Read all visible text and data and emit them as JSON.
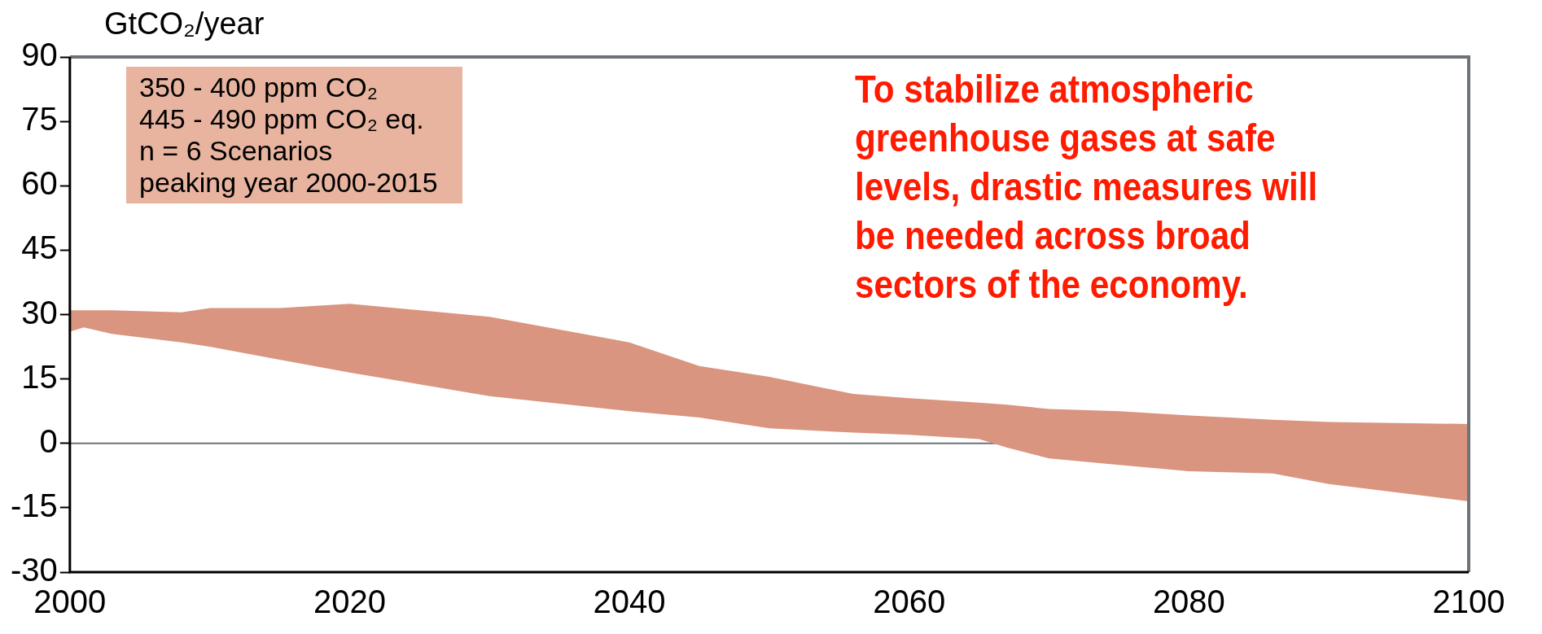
{
  "chart_data": {
    "type": "area",
    "ylabel": "GtCO₂/year",
    "x": [
      2000,
      2001,
      2003,
      2008,
      2010,
      2015,
      2020,
      2030,
      2040,
      2045,
      2050,
      2056,
      2060,
      2065,
      2067,
      2070,
      2075,
      2080,
      2086,
      2090,
      2100,
      2100,
      2090,
      2086,
      2080,
      2075,
      2070,
      2067,
      2065,
      2060,
      2056,
      2050,
      2045,
      2040,
      2030,
      2020,
      2015,
      2010,
      2008,
      2003,
      2001,
      2000
    ],
    "series": [
      {
        "color": "#d9957f",
        "values": [
          31,
          31,
          31,
          30.5,
          31.5,
          31.5,
          32.5,
          29.5,
          23.5,
          18,
          15.5,
          11.5,
          10.5,
          9.5,
          9,
          8,
          7.5,
          6.5,
          5.5,
          5,
          4.5,
          -13.5,
          -9.5,
          -7,
          -6.5,
          -5,
          -3.5,
          -1,
          1,
          2,
          2.5,
          3.5,
          6,
          7.5,
          11,
          16.5,
          19.5,
          22.5,
          23.5,
          25.5,
          27,
          26
        ]
      }
    ],
    "xlim": [
      2000,
      2100
    ],
    "xticks": [
      2000,
      2020,
      2040,
      2060,
      2080,
      2100
    ],
    "ylim": [
      -30,
      90
    ],
    "yticks": [
      -30,
      -15,
      0,
      15,
      30,
      45,
      60,
      75,
      90
    ],
    "ref_lines": [
      {
        "axis": "y",
        "value": 0,
        "color": "#6d7378"
      }
    ],
    "annotations": [
      "350 - 400 ppm CO₂\n445 - 490 ppm CO₂ eq.\nn = 6 Scenarios\npeaking year 2000-2015",
      "To stabilize atmospheric\ngreenhouse gases at safe\nlevels, drastic measures will\nbe needed across broad\nsectors of the economy."
    ],
    "grid": false,
    "legend": false
  }
}
